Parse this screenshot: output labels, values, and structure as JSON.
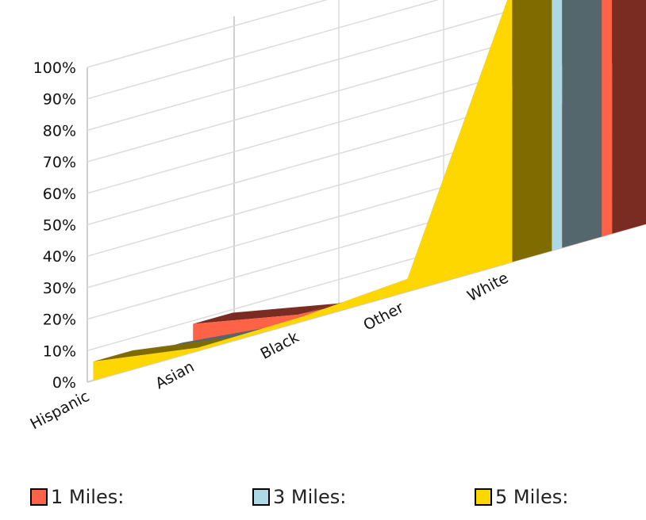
{
  "chart_data": {
    "type": "area",
    "categories": [
      "Hispanic",
      "Asian",
      "Black",
      "Other",
      "White"
    ],
    "series": [
      {
        "name": "1 Miles:",
        "values": [
          9.0,
          2.5,
          0.5,
          2.0,
          86.0
        ],
        "color": "#FF6347",
        "side_color": "#7B2C22",
        "top_color": "#7B2C22"
      },
      {
        "name": "3 Miles:",
        "values": [
          4.0,
          0.5,
          1.0,
          1.5,
          93.0
        ],
        "color": "#ADD8E6",
        "side_color": "#53676C",
        "top_color": "#53676C"
      },
      {
        "name": "5 Miles:",
        "values": [
          6.0,
          1.0,
          1.5,
          4.0,
          87.5
        ],
        "color": "#FFD700",
        "side_color": "#7F6B00",
        "top_color": "#7F6B00"
      }
    ],
    "y_ticks": [
      "0%",
      "10%",
      "20%",
      "30%",
      "40%",
      "50%",
      "60%",
      "70%",
      "80%",
      "90%",
      "100%"
    ],
    "ylim": [
      0,
      100
    ],
    "grid": true,
    "three_d": true,
    "legend_position": "bottom"
  }
}
